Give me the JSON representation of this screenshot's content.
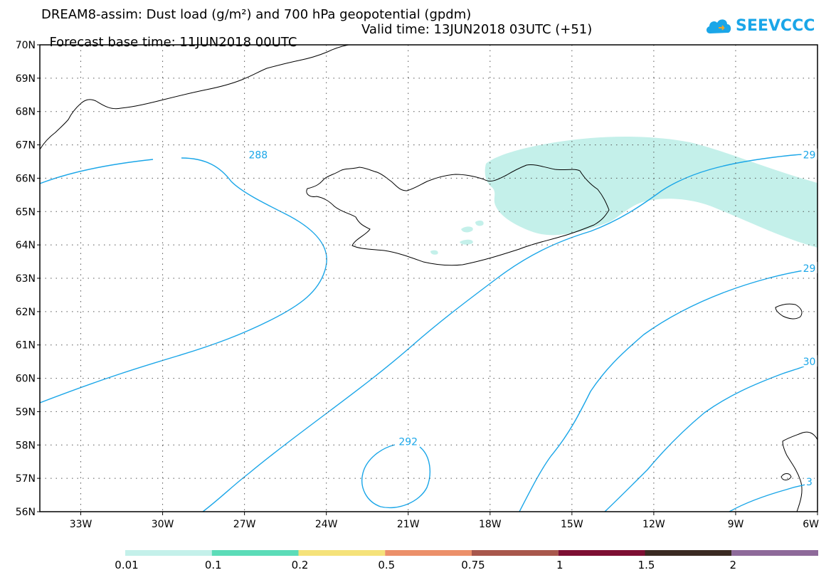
{
  "header": {
    "title_line1": "DREAM8-assim: Dust load (g/m²) and 700 hPa geopotential (gpdm)",
    "base_time": "Forecast base time: 11JUN2018 00UTC",
    "valid_time": "Valid time: 13JUN2018 03UTC (+51)"
  },
  "logo": {
    "text": "SEEVCCC",
    "icon": "cloud-icon",
    "color": "#1aa6e8"
  },
  "map": {
    "lon_range": [
      -34.5,
      -6
    ],
    "lat_range": [
      56,
      70
    ],
    "lat_labels": [
      "70N",
      "69N",
      "68N",
      "67N",
      "66N",
      "65N",
      "64N",
      "63N",
      "62N",
      "61N",
      "60N",
      "59N",
      "58N",
      "57N",
      "56N"
    ],
    "lon_labels": [
      "33W",
      "30W",
      "27W",
      "24W",
      "21W",
      "18W",
      "15W",
      "12W",
      "9W",
      "6W"
    ],
    "contour_color": "#1aa6e8",
    "contour_labels": [
      {
        "text": "288",
        "lon": -26.5,
        "lat": 66.7
      },
      {
        "text": "292",
        "lon": -21.0,
        "lat": 58.1
      },
      {
        "text": "29",
        "lon": -6.3,
        "lat": 66.7
      },
      {
        "text": "29",
        "lon": -6.3,
        "lat": 63.3
      },
      {
        "text": "30",
        "lon": -6.3,
        "lat": 60.5
      },
      {
        "text": "3",
        "lon": -6.3,
        "lat": 56.9
      }
    ]
  },
  "colorbar": {
    "colors": [
      "#c4f0ea",
      "#5cdcb8",
      "#f5e27a",
      "#ec906a",
      "#a8574c",
      "#7d0f33",
      "#3a2a22",
      "#8e6a9a"
    ],
    "labels": [
      "0.01",
      "0.1",
      "0.2",
      "0.5",
      "0.75",
      "1",
      "1.5",
      "2"
    ]
  }
}
